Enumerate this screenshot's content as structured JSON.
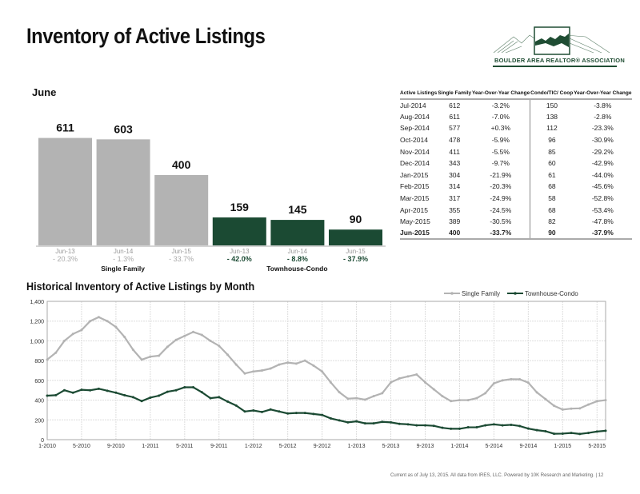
{
  "page": {
    "title": "Inventory of Active Listings",
    "footer": "Current as of July 13, 2015. All data from IRES, LLC. Powered by 10K Research and Marketing.  |  12",
    "logo_text": "BOULDER AREA REALTOR® ASSOCIATION"
  },
  "colors": {
    "single_family": "#b3b3b3",
    "condo": "#1b4a33"
  },
  "chart_data": [
    {
      "type": "bar",
      "title": "June",
      "groups": [
        {
          "name": "Single Family",
          "bars": [
            {
              "label": "Jun-13",
              "value": 611,
              "change": "- 20.3%"
            },
            {
              "label": "Jun-14",
              "value": 603,
              "change": "- 1.3%"
            },
            {
              "label": "Jun-15",
              "value": 400,
              "change": "- 33.7%"
            }
          ]
        },
        {
          "name": "Townhouse-Condo",
          "bars": [
            {
              "label": "Jun-13",
              "value": 159,
              "change": "- 42.0%"
            },
            {
              "label": "Jun-14",
              "value": 145,
              "change": "- 8.8%"
            },
            {
              "label": "Jun-15",
              "value": 90,
              "change": "- 37.9%"
            }
          ]
        }
      ]
    },
    {
      "type": "table",
      "headers": [
        "Active Listings",
        "Single Family",
        "Year-Over-Year Change",
        "Condo/TIC/ Coop",
        "Year-Over-Year Change"
      ],
      "rows": [
        [
          "Jul-2014",
          "612",
          "-3.2%",
          "150",
          "-3.8%"
        ],
        [
          "Aug-2014",
          "611",
          "-7.0%",
          "138",
          "-2.8%"
        ],
        [
          "Sep-2014",
          "577",
          "+0.3%",
          "112",
          "-23.3%"
        ],
        [
          "Oct-2014",
          "478",
          "-5.9%",
          "96",
          "-30.9%"
        ],
        [
          "Nov-2014",
          "411",
          "-5.5%",
          "85",
          "-29.2%"
        ],
        [
          "Dec-2014",
          "343",
          "-9.7%",
          "60",
          "-42.9%"
        ],
        [
          "Jan-2015",
          "304",
          "-21.9%",
          "61",
          "-44.0%"
        ],
        [
          "Feb-2015",
          "314",
          "-20.3%",
          "68",
          "-45.6%"
        ],
        [
          "Mar-2015",
          "317",
          "-24.9%",
          "58",
          "-52.8%"
        ],
        [
          "Apr-2015",
          "355",
          "-24.5%",
          "68",
          "-53.4%"
        ],
        [
          "May-2015",
          "389",
          "-30.5%",
          "82",
          "-47.8%"
        ],
        [
          "Jun-2015",
          "400",
          "-33.7%",
          "90",
          "-37.9%"
        ]
      ]
    },
    {
      "type": "line",
      "title": "Historical Inventory of Active Listings by Month",
      "ylim": [
        0,
        1400
      ],
      "yticks": [
        "0",
        "200",
        "400",
        "600",
        "800",
        "1,000",
        "1,200",
        "1,400"
      ],
      "xticks": [
        "1-2010",
        "5-2010",
        "9-2010",
        "1-2011",
        "5-2011",
        "9-2011",
        "1-2012",
        "5-2012",
        "9-2012",
        "1-2013",
        "5-2013",
        "9-2013",
        "1-2014",
        "5-2014",
        "9-2014",
        "1-2015",
        "5-2015"
      ],
      "legend_position": "top-right",
      "series": [
        {
          "name": "Single Family",
          "values": [
            810,
            880,
            1000,
            1070,
            1110,
            1200,
            1240,
            1200,
            1140,
            1040,
            910,
            810,
            840,
            850,
            940,
            1010,
            1050,
            1090,
            1060,
            1000,
            950,
            860,
            760,
            670,
            690,
            700,
            720,
            760,
            780,
            770,
            800,
            750,
            690,
            580,
            480,
            415,
            420,
            405,
            440,
            470,
            580,
            620,
            640,
            660,
            580,
            510,
            440,
            390,
            400,
            400,
            420,
            470,
            570,
            600,
            612,
            611,
            577,
            478,
            411,
            343,
            304,
            314,
            317,
            355,
            389,
            400
          ]
        },
        {
          "name": "Townhouse-Condo",
          "values": [
            445,
            450,
            500,
            475,
            505,
            500,
            515,
            495,
            475,
            450,
            430,
            390,
            425,
            445,
            485,
            500,
            530,
            530,
            480,
            420,
            430,
            385,
            345,
            285,
            295,
            280,
            305,
            285,
            265,
            270,
            270,
            260,
            250,
            215,
            195,
            175,
            185,
            165,
            165,
            180,
            175,
            160,
            155,
            145,
            145,
            140,
            120,
            110,
            110,
            125,
            125,
            145,
            155,
            145,
            150,
            138,
            112,
            96,
            85,
            60,
            61,
            68,
            58,
            68,
            82,
            90
          ]
        }
      ]
    }
  ]
}
